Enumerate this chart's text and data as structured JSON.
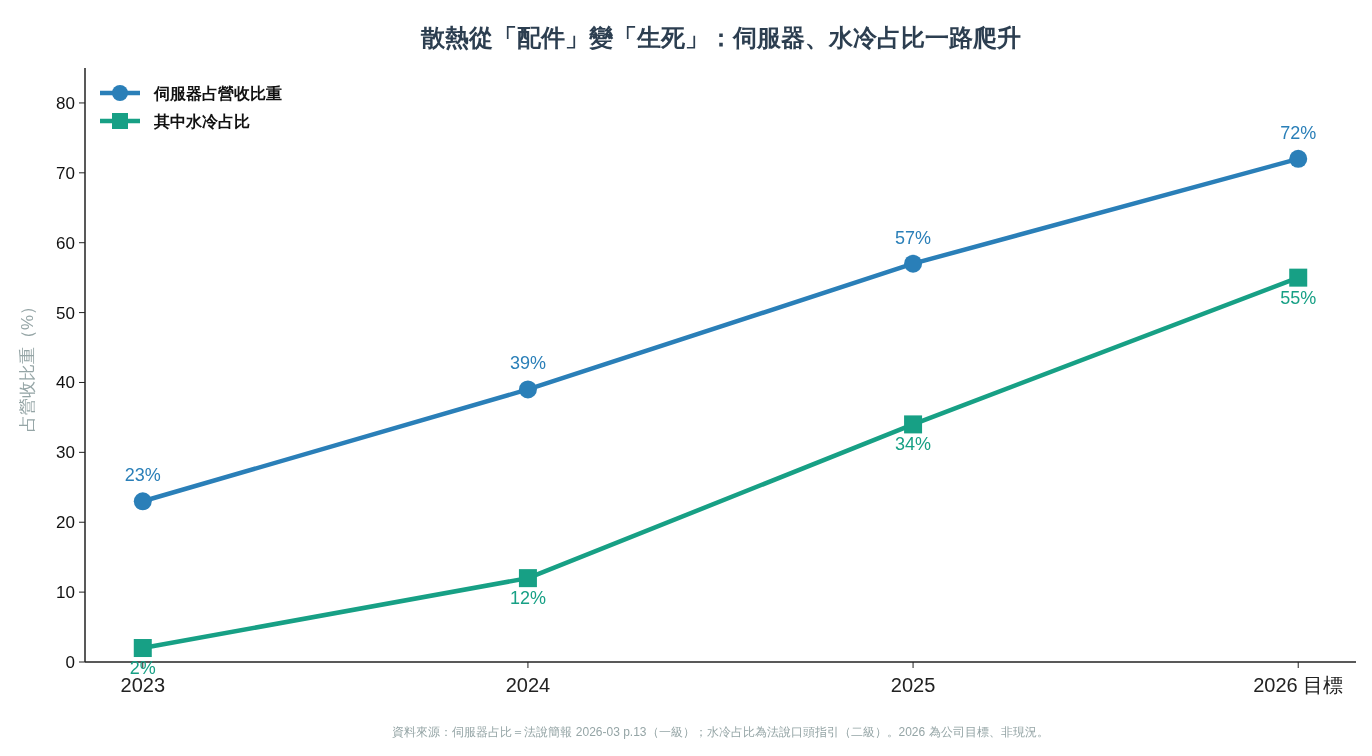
{
  "chart_data": {
    "type": "line",
    "title": "散熱從「配件」變「生死」：伺服器、水冷占比一路爬升",
    "ylabel": "占營收比重（%）",
    "categories": [
      "2023",
      "2024",
      "2025",
      "2026 目標"
    ],
    "ylim": [
      0,
      85
    ],
    "yticks": [
      0,
      10,
      20,
      30,
      40,
      50,
      60,
      70,
      80
    ],
    "grid": false,
    "legend": "top left",
    "series": [
      {
        "name": "伺服器占營收比重",
        "color": "#2a7fb8",
        "marker": "circle",
        "values": [
          23,
          39,
          57,
          72
        ],
        "value_labels": [
          "23%",
          "39%",
          "57%",
          "72%"
        ]
      },
      {
        "name": "其中水冷占比",
        "color": "#17a085",
        "marker": "square",
        "values": [
          2,
          12,
          34,
          55
        ],
        "value_labels": [
          "2%",
          "12%",
          "34%",
          "55%"
        ]
      }
    ],
    "annotations": [
      "資料來源：伺服器占比＝法說簡報 2026-03 p.13（一級）；水冷占比為法說口頭指引（二級）。2026 為公司目標、非現況。"
    ]
  }
}
